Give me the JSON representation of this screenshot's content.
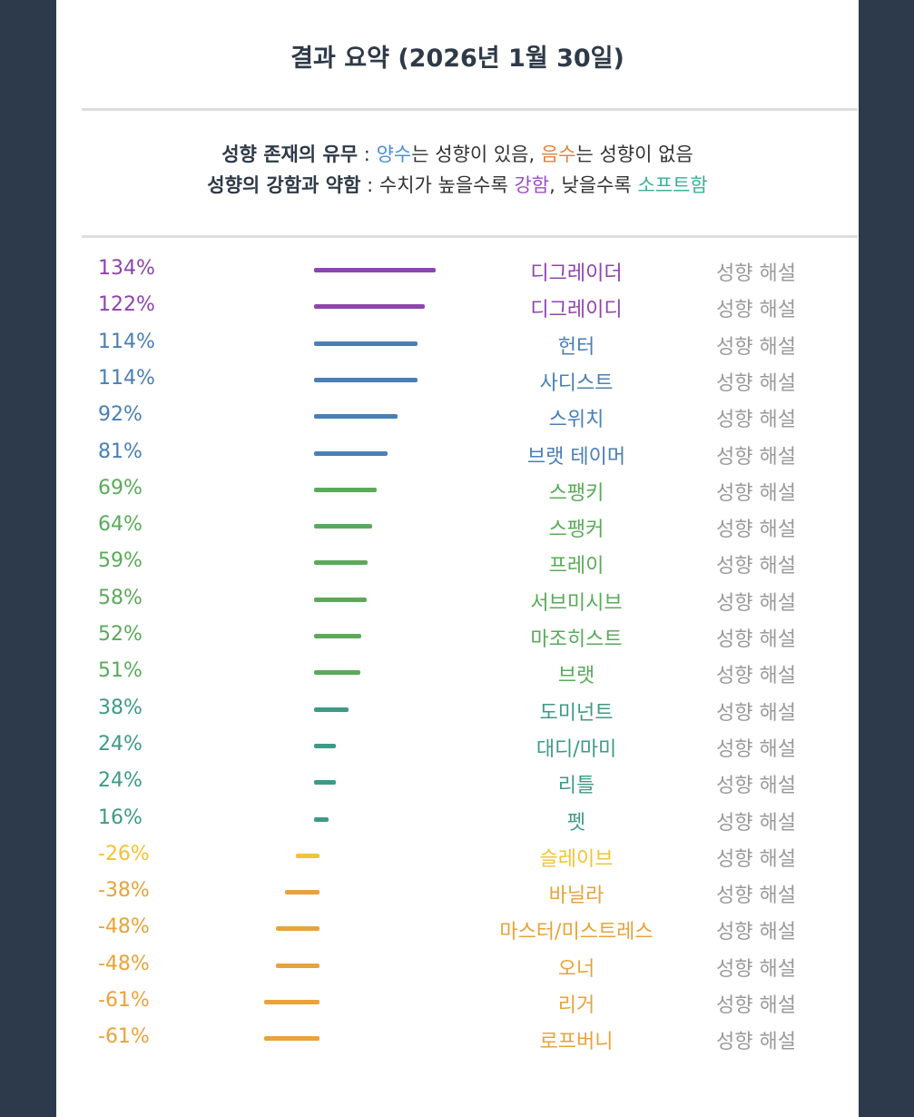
{
  "title": "결과 요약 (2026년 1월 30일)",
  "legend": {
    "line1_label": "성향 존재의 유무",
    "line1_sep": " : ",
    "line1_pos": "양수",
    "line1_pos_text": "는 성향이 있음, ",
    "line1_neg": "음수",
    "line1_neg_text": "는 성향이 없음",
    "line2_label": "성향의 강함과 약함",
    "line2_sep": " : ",
    "line2_text1": "수치가 높을수록 ",
    "line2_strong": "강함",
    "line2_text2": ", 낮을수록 ",
    "line2_soft": "소프트함"
  },
  "link_label": "성향 해설",
  "colors": {
    "purple": "#8e44ad",
    "blue": "#4a7fb5",
    "green": "#5aaa5a",
    "teal": "#3e9a86",
    "yellow": "#f2c335",
    "orange": "#e8a33a"
  },
  "chart_data": {
    "type": "bar",
    "orientation": "horizontal",
    "categories": [
      "디그레이더",
      "디그레이디",
      "헌터",
      "사디스트",
      "스위치",
      "브랫 테이머",
      "스팽키",
      "스팽커",
      "프레이",
      "서브미시브",
      "마조히스트",
      "브랫",
      "도미넌트",
      "대디/마미",
      "리틀",
      "펫",
      "슬레이브",
      "바닐라",
      "마스터/미스트레스",
      "오너",
      "리거",
      "로프버니"
    ],
    "values": [
      134,
      122,
      114,
      114,
      92,
      81,
      69,
      64,
      59,
      58,
      52,
      51,
      38,
      24,
      24,
      16,
      -26,
      -38,
      -48,
      -48,
      -61,
      -61
    ],
    "labels": [
      "134%",
      "122%",
      "114%",
      "114%",
      "92%",
      "81%",
      "69%",
      "64%",
      "59%",
      "58%",
      "52%",
      "51%",
      "38%",
      "24%",
      "24%",
      "16%",
      "-26%",
      "-38%",
      "-48%",
      "-48%",
      "-61%",
      "-61%"
    ],
    "unit": "%"
  }
}
